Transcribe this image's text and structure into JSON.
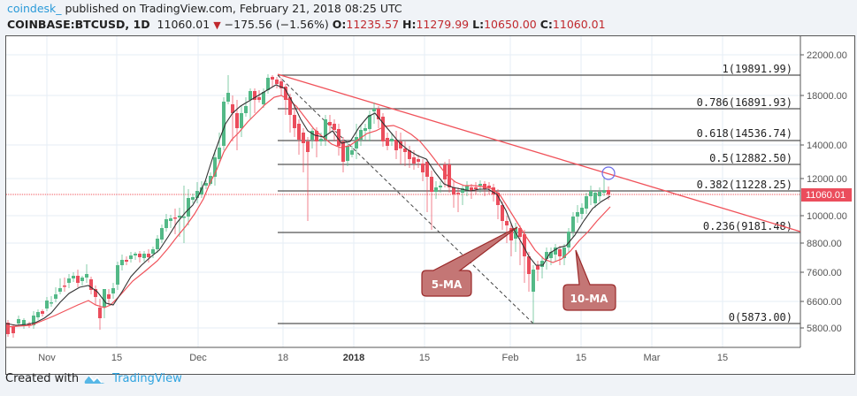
{
  "header": {
    "author": "coindesk_",
    "published_text": " published on TradingView.com, February 21, 2018 08:25 UTC",
    "symbol": "COINBASE:BTCUSD, 1D",
    "last": "11060.01",
    "change": "−175.56 (−1.56%)",
    "open_label": "O:",
    "open": "11235.57",
    "high_label": "H:",
    "high": "11279.99",
    "low_label": "L:",
    "low": "10650.00",
    "close_label": "C:",
    "close": "11060.01"
  },
  "footer": {
    "created_with": "Created with",
    "brand": "TradingView",
    "logo_icon": "tradingview-cloud-icon"
  },
  "colors": {
    "up": "#53b987",
    "down": "#eb4d5c",
    "ma5": "#333333",
    "ma10": "#f0525a",
    "trendline": "#f0525a",
    "fib_line": "#555555",
    "price_badge": "#eb4d5c",
    "callout_fill": "#c47675",
    "callout_stroke": "#9a2a2a",
    "circle": "#6b6be8",
    "grid": "#e6eef5"
  },
  "chart_data": {
    "type": "candlestick",
    "title": "COINBASE:BTCUSD, 1D",
    "xlabel": "",
    "ylabel": "",
    "y_scale": "log",
    "ylim": [
      5500,
      23000
    ],
    "y_ticks": [
      "22000.00",
      "18000.00",
      "14000.00",
      "12000.00",
      "10000.00",
      "8800.00",
      "7600.00",
      "6600.00",
      "5800.00"
    ],
    "x_ticks": [
      "Nov",
      "15",
      "Dec",
      "18",
      "2018",
      "15",
      "Feb",
      "15",
      "Mar",
      "15"
    ],
    "last_price_label": "11060.01",
    "grid": true,
    "series": [
      {
        "name": "5-MA",
        "type": "line",
        "color": "#333333"
      },
      {
        "name": "10-MA",
        "type": "line",
        "color": "#f0525a"
      }
    ],
    "fibonacci_retracement": [
      {
        "level": "1",
        "price": "19891.99",
        "label": "1(19891.99)"
      },
      {
        "level": "0.786",
        "price": "16891.93",
        "label": "0.786(16891.93)"
      },
      {
        "level": "0.618",
        "price": "14536.74",
        "label": "0.618(14536.74)"
      },
      {
        "level": "0.5",
        "price": "12882.50",
        "label": "0.5(12882.50)"
      },
      {
        "level": "0.382",
        "price": "11228.25",
        "label": "0.382(11228.25)"
      },
      {
        "level": "0.236",
        "price": "9181.48",
        "label": "0.236(9181.48)"
      },
      {
        "level": "0",
        "price": "5873.00",
        "label": "0(5873.00)"
      }
    ],
    "annotations": [
      {
        "text": "5-MA",
        "type": "callout"
      },
      {
        "text": "10-MA",
        "type": "callout"
      },
      {
        "text": "descending trendline from Dec high",
        "type": "line"
      },
      {
        "text": "circle at trendline test",
        "type": "ellipse"
      }
    ],
    "approx_ohlc_path": [
      {
        "date": "Nov 1",
        "close": 6750
      },
      {
        "date": "Nov 8",
        "close": 7400
      },
      {
        "date": "Nov 12",
        "close": 5900
      },
      {
        "date": "Nov 15",
        "close": 7300
      },
      {
        "date": "Nov 26",
        "close": 9300
      },
      {
        "date": "Dec 7",
        "close": 16000
      },
      {
        "date": "Dec 17",
        "close": 19500
      },
      {
        "date": "Dec 22",
        "close": 13800
      },
      {
        "date": "Jan 6",
        "close": 17100
      },
      {
        "date": "Jan 16",
        "close": 11300
      },
      {
        "date": "Jan 28",
        "close": 11700
      },
      {
        "date": "Feb 5",
        "close": 6900
      },
      {
        "date": "Feb 6",
        "close": 7700
      },
      {
        "date": "Feb 15",
        "close": 10100
      },
      {
        "date": "Feb 20",
        "close": 11235
      },
      {
        "date": "Feb 21",
        "close": 11060
      }
    ]
  }
}
